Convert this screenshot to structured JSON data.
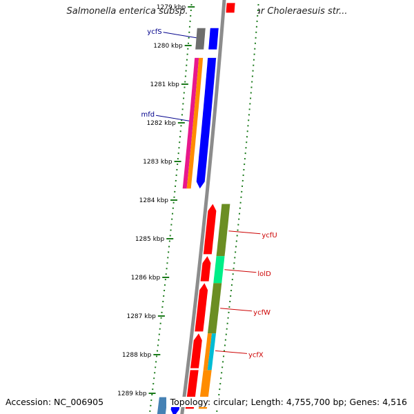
{
  "title": "Salmonella enterica subsp. enterica serovar Choleraesuis str...",
  "footer": {
    "accession": "Accession: NC_006905",
    "summary": "Topology: circular; Length: 4,755,700 bp; Genes: 4,516"
  },
  "colors": {
    "backbone": "#8c8c8c",
    "tick": "#1a7a1a",
    "label_forward": "#00008b",
    "label_reverse": "#cc0000"
  },
  "ticks": [
    {
      "label": "1279 kbp",
      "kbp": 1279
    },
    {
      "label": "1280 kbp",
      "kbp": 1280
    },
    {
      "label": "1281 kbp",
      "kbp": 1281
    },
    {
      "label": "1282 kbp",
      "kbp": 1282
    },
    {
      "label": "1283 kbp",
      "kbp": 1283
    },
    {
      "label": "1284 kbp",
      "kbp": 1284
    },
    {
      "label": "1285 kbp",
      "kbp": 1285
    },
    {
      "label": "1286 kbp",
      "kbp": 1286
    },
    {
      "label": "1287 kbp",
      "kbp": 1287
    },
    {
      "label": "1288 kbp",
      "kbp": 1288
    },
    {
      "label": "1289 kbp",
      "kbp": 1289
    }
  ],
  "features": [
    {
      "lane": "f1",
      "start": 1279.55,
      "end": 1280.1,
      "color": "#6e6e6e",
      "arrow": false
    },
    {
      "lane": "f2",
      "start": 1279.55,
      "end": 1280.1,
      "color": "#0000ff",
      "arrow": false
    },
    {
      "lane": "f1",
      "start": 1280.32,
      "end": 1283.7,
      "color": "#e8188c",
      "arrow": false,
      "half": "l"
    },
    {
      "lane": "f1",
      "start": 1280.32,
      "end": 1283.7,
      "color": "#ff8c00",
      "arrow": false,
      "half": "r"
    },
    {
      "lane": "f2",
      "start": 1280.32,
      "end": 1283.7,
      "color": "#0000ff",
      "arrow": true,
      "dir": 1
    },
    {
      "lane": "r1",
      "start": 1284.1,
      "end": 1285.4,
      "color": "#ff0000",
      "arrow": true,
      "dir": -1
    },
    {
      "lane": "r1",
      "start": 1285.45,
      "end": 1286.1,
      "color": "#ff0000",
      "arrow": true,
      "dir": -1
    },
    {
      "lane": "r1",
      "start": 1286.15,
      "end": 1287.4,
      "color": "#ff0000",
      "arrow": true,
      "dir": -1
    },
    {
      "lane": "r1",
      "start": 1287.45,
      "end": 1288.35,
      "color": "#ff0000",
      "arrow": true,
      "dir": -1
    },
    {
      "lane": "r1",
      "start": 1288.4,
      "end": 1289.4,
      "color": "#ff0000",
      "arrow": false
    },
    {
      "lane": "r2",
      "start": 1284.1,
      "end": 1285.45,
      "color": "#6b8e23",
      "arrow": false
    },
    {
      "lane": "r2",
      "start": 1285.45,
      "end": 1286.15,
      "color": "#00ee88",
      "arrow": false
    },
    {
      "lane": "r2",
      "start": 1286.15,
      "end": 1287.45,
      "color": "#6b8e23",
      "arrow": false
    },
    {
      "lane": "r2",
      "start": 1287.45,
      "end": 1288.4,
      "color": "#ff8c00",
      "arrow": false,
      "half": "l"
    },
    {
      "lane": "r2",
      "start": 1287.45,
      "end": 1288.4,
      "color": "#00bcd4",
      "arrow": false,
      "half": "r"
    },
    {
      "lane": "r2",
      "start": 1288.4,
      "end": 1289.4,
      "color": "#ff8c00",
      "arrow": false
    },
    {
      "lane": "f1",
      "start": 1289.1,
      "end": 1289.6,
      "color": "#4682b4",
      "arrow": false
    },
    {
      "lane": "f2",
      "start": 1289.1,
      "end": 1289.6,
      "color": "#0000ff",
      "arrow": true,
      "dir": 1
    },
    {
      "lane": "r1",
      "start": 1278.9,
      "end": 1279.15,
      "color": "#ff0000",
      "arrow": false
    }
  ],
  "gene_labels": [
    {
      "name": "ycfS",
      "side": "left",
      "kbp": 1279.8,
      "color": "#00008b",
      "lane": "f1"
    },
    {
      "name": "mfd",
      "side": "left",
      "kbp": 1281.95,
      "color": "#00008b",
      "lane": "f1"
    },
    {
      "name": "ycfU",
      "side": "right",
      "kbp": 1284.8,
      "color": "#cc0000",
      "lane": "r2"
    },
    {
      "name": "lolD",
      "side": "right",
      "kbp": 1285.8,
      "color": "#cc0000",
      "lane": "r2"
    },
    {
      "name": "ycfW",
      "side": "right",
      "kbp": 1286.8,
      "color": "#cc0000",
      "lane": "r2"
    },
    {
      "name": "ycfX",
      "side": "right",
      "kbp": 1287.9,
      "color": "#cc0000",
      "lane": "r2"
    }
  ]
}
